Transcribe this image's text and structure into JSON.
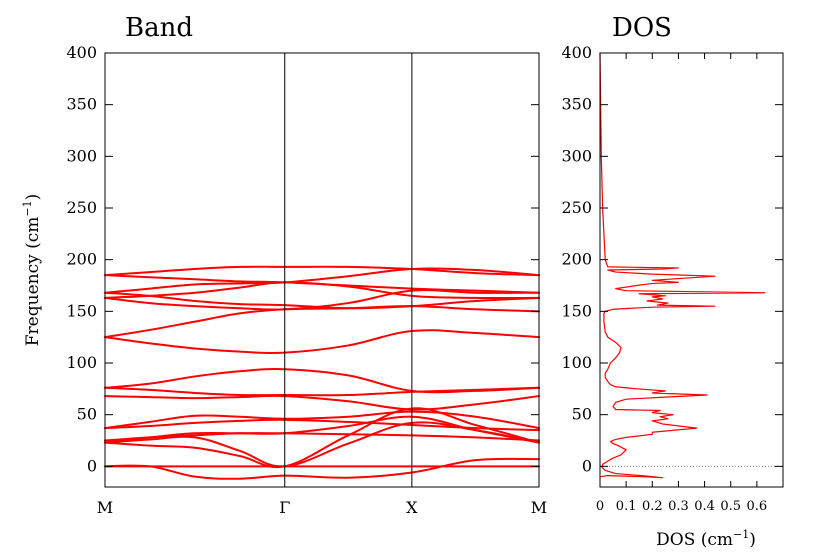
{
  "chart_data": [
    {
      "type": "line",
      "title": "Band",
      "ylabel": "Frequency (cm",
      "ylabel_sup": "−1",
      "ylabel_close": ")",
      "ylim": [
        -20,
        400
      ],
      "yticks": [
        0,
        50,
        100,
        150,
        200,
        250,
        300,
        350,
        400
      ],
      "kpoints": [
        {
          "label": "M",
          "x": 0
        },
        {
          "label": "Γ",
          "x": 1.414
        },
        {
          "label": "X",
          "x": 2.414
        },
        {
          "label": "M",
          "x": 3.414
        }
      ],
      "zero_line": true,
      "series_color": "#ff0000",
      "series": [
        {
          "x": [
            0,
            0.353,
            0.707,
            1.06,
            1.414,
            1.914,
            2.414,
            2.914,
            3.414
          ],
          "y": [
            185,
            188,
            191,
            193,
            193,
            193,
            191,
            187,
            185
          ]
        },
        {
          "x": [
            0,
            0.353,
            0.707,
            1.06,
            1.414,
            1.914,
            2.414,
            2.914,
            3.414
          ],
          "y": [
            185,
            183,
            181,
            179,
            178,
            175,
            172,
            170,
            168
          ]
        },
        {
          "x": [
            0,
            0.353,
            0.707,
            1.06,
            1.414,
            1.914,
            2.414,
            2.914,
            3.414
          ],
          "y": [
            168,
            172,
            176,
            177,
            178,
            184,
            191,
            190,
            185
          ]
        },
        {
          "x": [
            0,
            0.353,
            0.707,
            1.06,
            1.414,
            1.914,
            2.414,
            2.914,
            3.414
          ],
          "y": [
            168,
            165,
            160,
            157,
            156,
            153,
            155,
            160,
            163
          ]
        },
        {
          "x": [
            0,
            0.353,
            0.707,
            1.06,
            1.414,
            1.914,
            2.414,
            2.914,
            3.414
          ],
          "y": [
            163,
            165,
            168,
            173,
            178,
            174,
            165,
            163,
            163
          ]
        },
        {
          "x": [
            0,
            0.353,
            0.707,
            1.06,
            1.414,
            1.914,
            2.414,
            2.914,
            3.414
          ],
          "y": [
            163,
            158,
            155,
            153,
            152,
            158,
            170,
            168,
            168
          ]
        },
        {
          "x": [
            0,
            0.353,
            0.707,
            1.06,
            1.414,
            1.914,
            2.414,
            2.914,
            3.414
          ],
          "y": [
            125,
            132,
            140,
            148,
            152,
            153,
            155,
            152,
            150
          ]
        },
        {
          "x": [
            0,
            0.353,
            0.707,
            1.06,
            1.414,
            1.914,
            2.414,
            2.914,
            3.414
          ],
          "y": [
            125,
            119,
            114,
            111,
            110,
            117,
            131,
            129,
            125
          ]
        },
        {
          "x": [
            0,
            0.353,
            0.707,
            1.06,
            1.414,
            1.914,
            2.414,
            2.914,
            3.414
          ],
          "y": [
            76,
            80,
            87,
            92,
            94,
            88,
            73,
            73,
            76
          ]
        },
        {
          "x": [
            0,
            0.353,
            0.707,
            1.06,
            1.414,
            1.914,
            2.414,
            2.914,
            3.414
          ],
          "y": [
            76,
            74,
            71,
            69,
            69,
            69,
            72,
            74,
            76
          ]
        },
        {
          "x": [
            0,
            0.353,
            0.707,
            1.06,
            1.414,
            1.914,
            2.414,
            2.914,
            3.414
          ],
          "y": [
            68,
            67,
            66,
            67,
            68,
            63,
            55,
            60,
            68
          ]
        },
        {
          "x": [
            0,
            0.353,
            0.707,
            1.06,
            1.414,
            1.914,
            2.414,
            2.914,
            3.414
          ],
          "y": [
            37,
            43,
            49,
            48,
            46,
            48,
            53,
            48,
            37
          ]
        },
        {
          "x": [
            0,
            0.353,
            0.707,
            1.06,
            1.414,
            1.914,
            2.414,
            2.914,
            3.414
          ],
          "y": [
            37,
            39,
            42,
            44,
            45,
            43,
            40,
            37,
            35
          ]
        },
        {
          "x": [
            0,
            0.353,
            0.707,
            1.06,
            1.414,
            1.914,
            2.414,
            2.914,
            3.414
          ],
          "y": [
            25,
            28,
            30,
            32,
            32,
            31,
            30,
            28,
            25
          ]
        },
        {
          "x": [
            0,
            0.353,
            0.707,
            1.06,
            1.414,
            1.914,
            2.414,
            2.914,
            3.414
          ],
          "y": [
            23,
            28,
            32,
            32,
            32,
            39,
            48,
            35,
            23
          ]
        },
        {
          "x": [
            0,
            0.353,
            0.707,
            1.06,
            1.414,
            1.914,
            2.414,
            2.914,
            3.414
          ],
          "y": [
            23,
            20,
            18,
            10,
            0,
            30,
            56,
            40,
            23
          ]
        },
        {
          "x": [
            0,
            0.353,
            0.707,
            1.06,
            1.414,
            1.914,
            2.414,
            2.914,
            3.414
          ],
          "y": [
            23,
            26,
            28,
            15,
            0,
            22,
            42,
            35,
            23
          ]
        },
        {
          "x": [
            0,
            0.353,
            0.707,
            1.06,
            1.414,
            1.914,
            2.414,
            2.914,
            3.414
          ],
          "y": [
            0,
            0,
            -10,
            -12,
            -9,
            -11,
            -6,
            6,
            7
          ]
        },
        {
          "x": [
            0,
            0.353,
            0.707,
            1.06,
            1.414,
            1.914,
            2.414,
            2.914,
            3.414
          ],
          "y": [
            0,
            0,
            0,
            0,
            0,
            0,
            0,
            0,
            0
          ]
        }
      ]
    },
    {
      "type": "line",
      "title": "DOS",
      "xlabel": "DOS (cm",
      "xlabel_sup": "−1",
      "xlabel_close": ")",
      "xlim": [
        0,
        0.7
      ],
      "xticks": [
        0,
        0.1,
        0.2,
        0.3,
        0.4,
        0.5,
        0.6
      ],
      "ylim": [
        -20,
        400
      ],
      "yticks": [
        0,
        50,
        100,
        150,
        200,
        250,
        300,
        350,
        400
      ],
      "zero_line": "dotted",
      "series_color": "#ff0000",
      "series": [
        {
          "x": [
            0,
            0.03,
            0.16,
            0.24,
            0.16,
            0.06,
            0.02,
            0.008,
            0.01,
            0.03,
            0.05,
            0.08,
            0.1,
            0.07,
            0.05,
            0.04,
            0.06,
            0.1,
            0.2,
            0.2,
            0.37,
            0.24,
            0.2,
            0.26,
            0.23,
            0.28,
            0.2,
            0.23,
            0.06,
            0.05,
            0.06,
            0.1,
            0.25,
            0.41,
            0.2,
            0.25,
            0.14,
            0.06,
            0.04,
            0.03,
            0.02,
            0.02,
            0.03,
            0.04,
            0.06,
            0.075,
            0.08,
            0.06,
            0.03,
            0.02,
            0.015,
            0.015,
            0.02,
            0.05,
            0.12,
            0.2,
            0.44,
            0.22,
            0.26,
            0.18,
            0.24,
            0.2,
            0.25,
            0.15,
            0.63,
            0.1,
            0.06,
            0.14,
            0.2,
            0.3,
            0.2,
            0.44,
            0.2,
            0.06,
            0.03,
            0.24,
            0.3,
            0.03,
            0.02,
            0.01,
            0.005,
            0
          ],
          "y": [
            -10,
            -9,
            -10,
            -11,
            -9,
            -7,
            -4,
            -1,
            2,
            5,
            8,
            11,
            16,
            20,
            22,
            24,
            26,
            28,
            31,
            33,
            37,
            41,
            44,
            46,
            48,
            50,
            52,
            54,
            55,
            58,
            62,
            65,
            67,
            69,
            71,
            73,
            75,
            77,
            79,
            82,
            86,
            90,
            94,
            100,
            105,
            110,
            115,
            120,
            125,
            130,
            140,
            148,
            150,
            152,
            153,
            154,
            155,
            156,
            158,
            160,
            162,
            164,
            165,
            167,
            168,
            170,
            172,
            175,
            177,
            178,
            180,
            184,
            186,
            188,
            190,
            191,
            192,
            193,
            200,
            250,
            300,
            400
          ]
        }
      ]
    }
  ]
}
